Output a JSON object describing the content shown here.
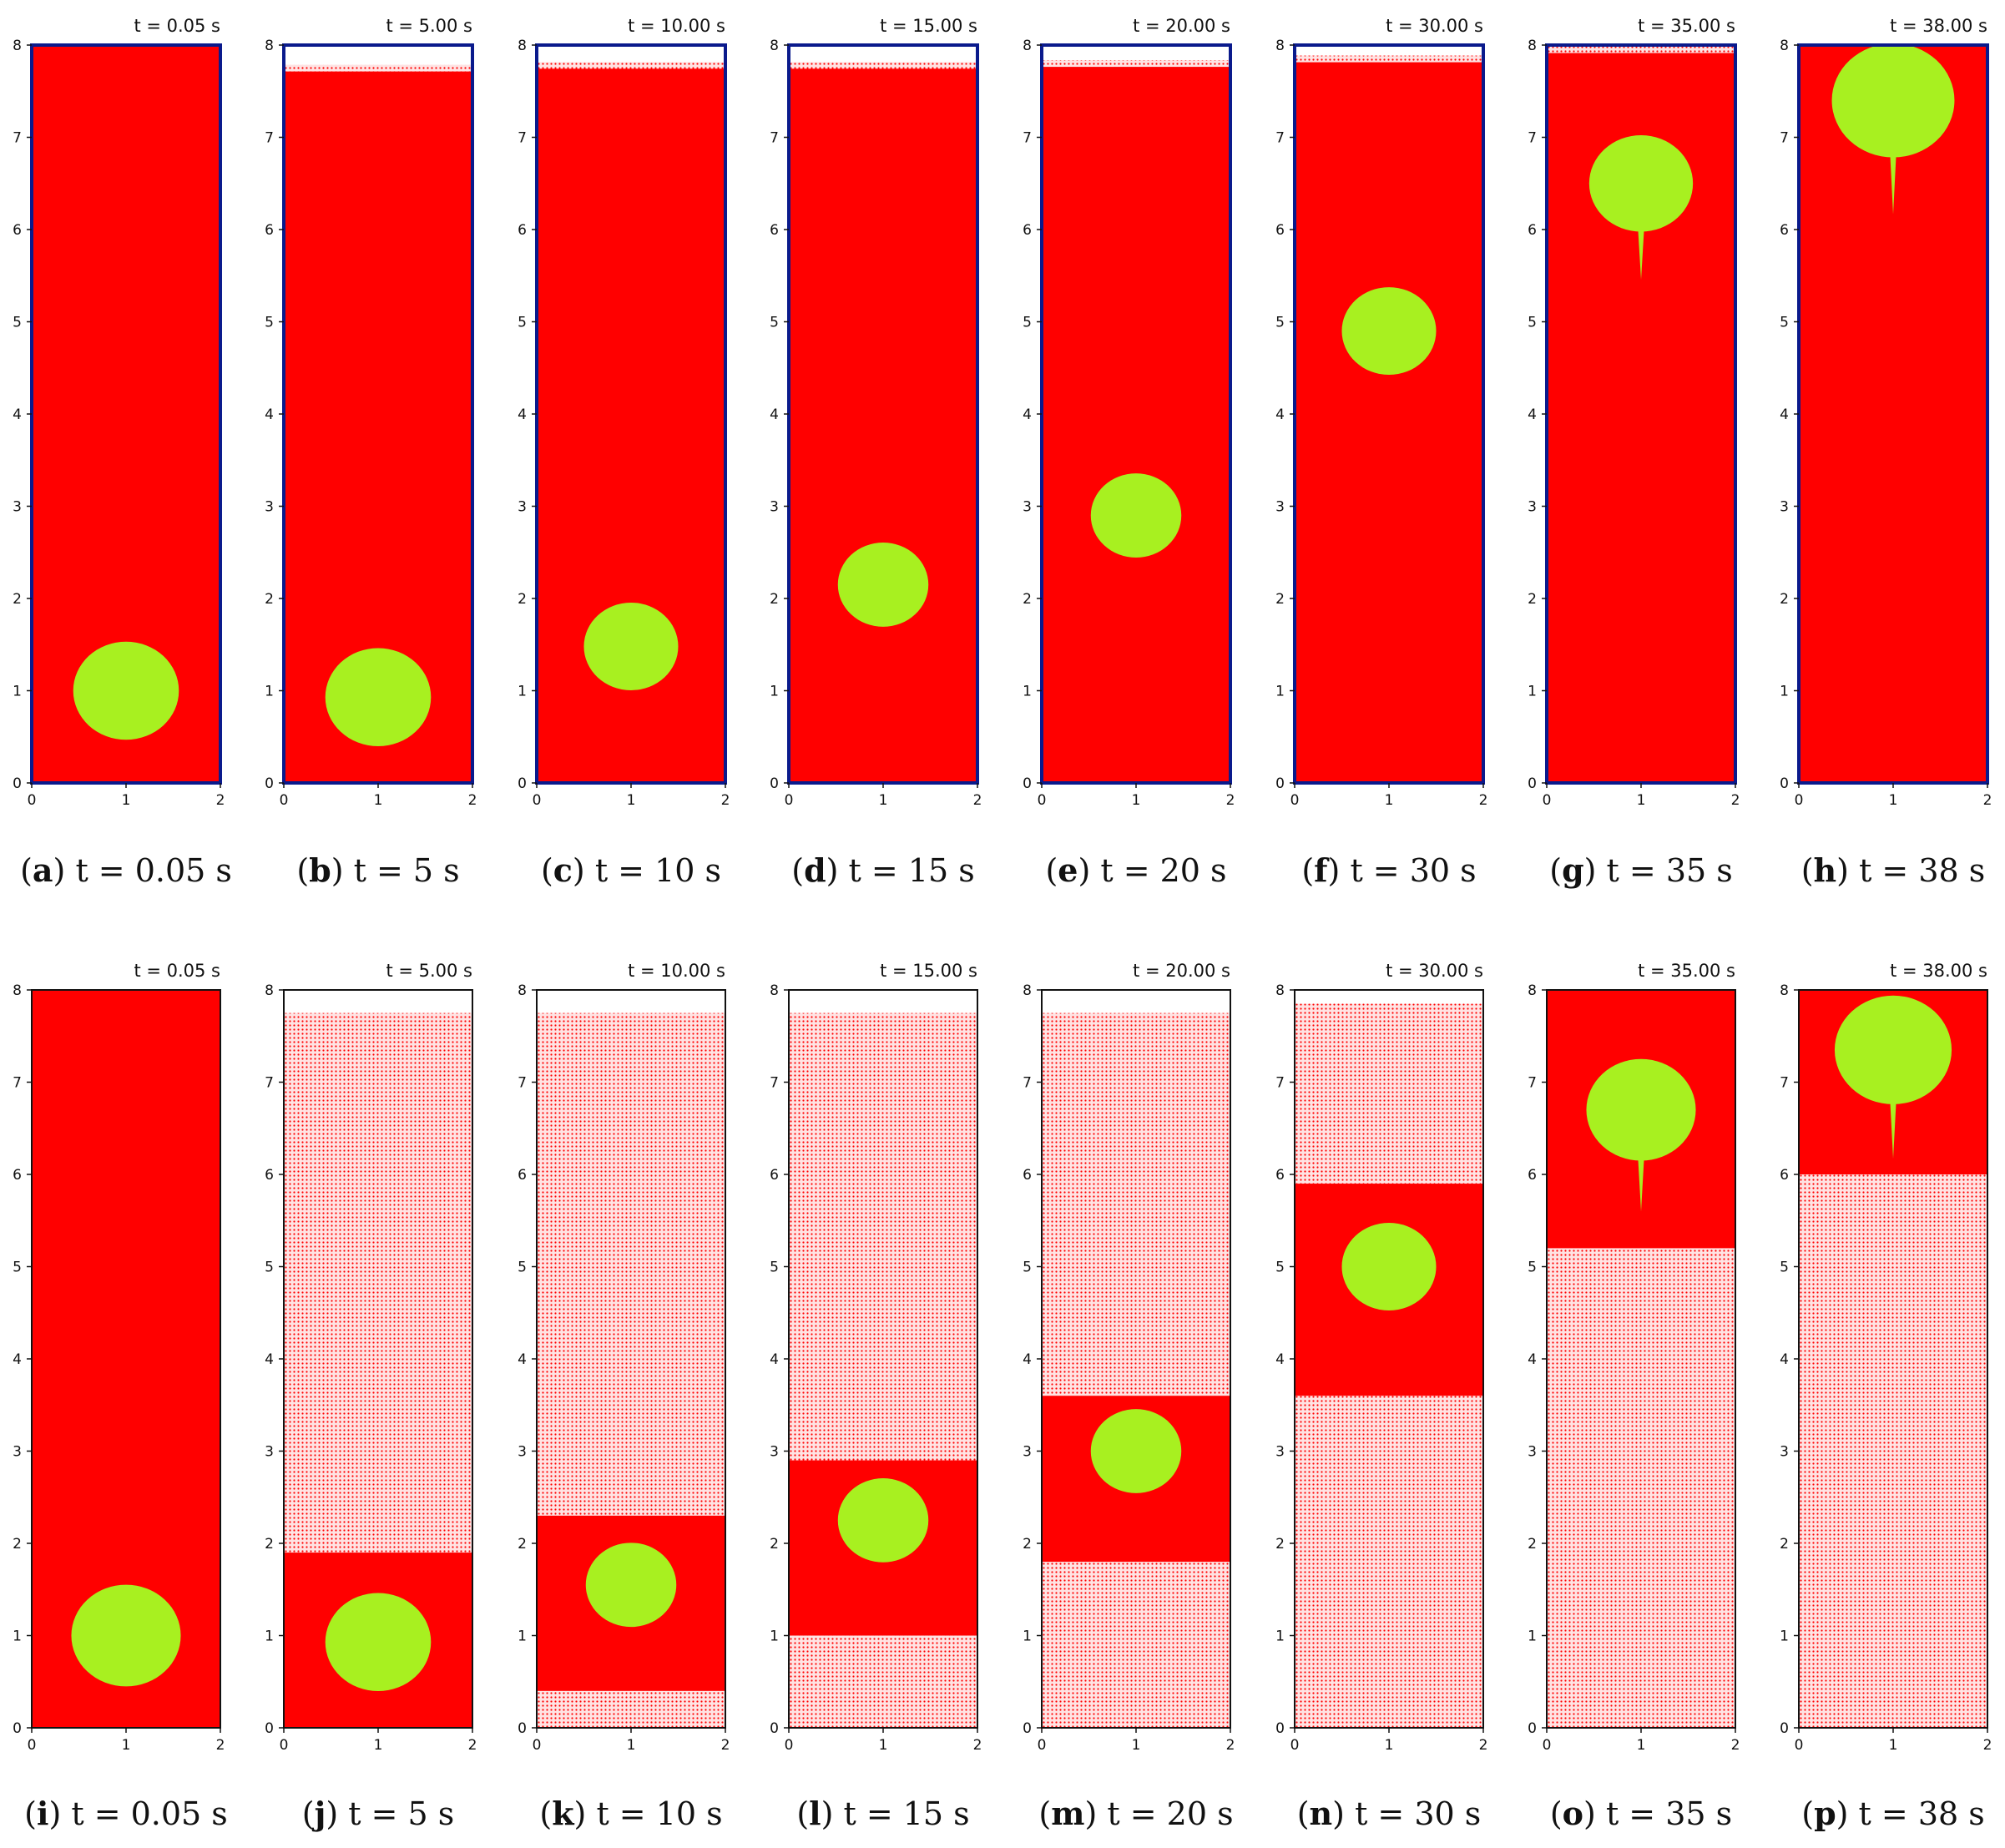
{
  "figure": {
    "colors": {
      "fluid": "#ff0000",
      "bubble": "#a8f020",
      "border_top_row": "#0a1a8c",
      "border_bottom_row": "#111111",
      "sparse_fluid": "#ffe3e3"
    },
    "axes": {
      "x_ticks": [
        "0",
        "1",
        "2"
      ],
      "y_ticks": [
        "0",
        "1",
        "2",
        "3",
        "4",
        "5",
        "6",
        "7",
        "8"
      ],
      "x_range": [
        0,
        2
      ],
      "y_range": [
        0,
        8
      ]
    },
    "rows": [
      {
        "style": "dense",
        "panels": [
          {
            "letter": "a",
            "caption": "t = 0.05 s",
            "time_label": "t = 0.05 s",
            "bubble_y": 1.0,
            "bubble_r": 0.56,
            "fluid_top": 8.0
          },
          {
            "letter": "b",
            "caption": "t = 5 s",
            "time_label": "t = 5.00 s",
            "bubble_y": 0.93,
            "bubble_r": 0.56,
            "fluid_top": 7.75
          },
          {
            "letter": "c",
            "caption": "t = 10 s",
            "time_label": "t = 10.00 s",
            "bubble_y": 1.48,
            "bubble_r": 0.5,
            "fluid_top": 7.78
          },
          {
            "letter": "d",
            "caption": "t = 15 s",
            "time_label": "t = 15.00 s",
            "bubble_y": 2.15,
            "bubble_r": 0.48,
            "fluid_top": 7.78
          },
          {
            "letter": "e",
            "caption": "t = 20 s",
            "time_label": "t = 20.00 s",
            "bubble_y": 2.9,
            "bubble_r": 0.48,
            "fluid_top": 7.8
          },
          {
            "letter": "f",
            "caption": "t = 30 s",
            "time_label": "t = 30.00 s",
            "bubble_y": 4.9,
            "bubble_r": 0.5,
            "fluid_top": 7.85
          },
          {
            "letter": "g",
            "caption": "t = 35 s",
            "time_label": "t = 35.00 s",
            "bubble_y": 6.5,
            "bubble_r": 0.55,
            "fluid_top": 7.95
          },
          {
            "letter": "h",
            "caption": "t = 38 s",
            "time_label": "t = 38.00 s",
            "bubble_y": 7.4,
            "bubble_r": 0.65,
            "fluid_top": 8.0
          }
        ]
      },
      {
        "style": "sparse",
        "panels": [
          {
            "letter": "i",
            "caption": "t = 0.05 s",
            "time_label": "t = 0.05 s",
            "bubble_y": 1.0,
            "bubble_r": 0.58,
            "fluid_top": 8.0,
            "band": [
              0.0,
              8.0
            ]
          },
          {
            "letter": "j",
            "caption": "t = 5 s",
            "time_label": "t = 5.00 s",
            "bubble_y": 0.93,
            "bubble_r": 0.56,
            "fluid_top": 7.75,
            "band": [
              0.0,
              1.9
            ]
          },
          {
            "letter": "k",
            "caption": "t = 10 s",
            "time_label": "t = 10.00 s",
            "bubble_y": 1.55,
            "bubble_r": 0.48,
            "fluid_top": 7.75,
            "band": [
              0.4,
              2.3
            ]
          },
          {
            "letter": "l",
            "caption": "t = 15 s",
            "time_label": "t = 15.00 s",
            "bubble_y": 2.25,
            "bubble_r": 0.48,
            "fluid_top": 7.75,
            "band": [
              1.0,
              2.9
            ]
          },
          {
            "letter": "m",
            "caption": "t = 20 s",
            "time_label": "t = 20.00 s",
            "bubble_y": 3.0,
            "bubble_r": 0.48,
            "fluid_top": 7.75,
            "band": [
              1.8,
              3.6
            ]
          },
          {
            "letter": "n",
            "caption": "t = 30 s",
            "time_label": "t = 30.00 s",
            "bubble_y": 5.0,
            "bubble_r": 0.5,
            "fluid_top": 7.85,
            "band": [
              3.6,
              5.9
            ]
          },
          {
            "letter": "o",
            "caption": "t = 35 s",
            "time_label": "t = 35.00 s",
            "bubble_y": 6.7,
            "bubble_r": 0.58,
            "fluid_top": 7.95,
            "band": [
              5.2,
              8.0
            ]
          },
          {
            "letter": "p",
            "caption": "t = 38 s",
            "time_label": "t = 38.00 s",
            "bubble_y": 7.35,
            "bubble_r": 0.62,
            "fluid_top": 8.0,
            "band": [
              6.0,
              8.0
            ]
          }
        ]
      }
    ]
  }
}
